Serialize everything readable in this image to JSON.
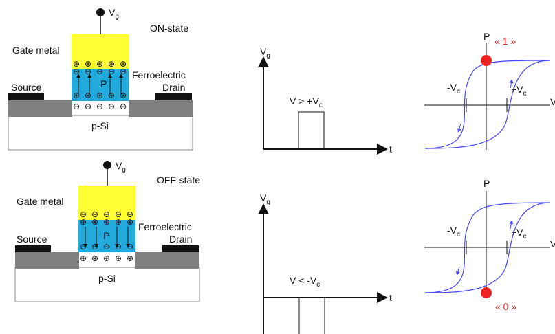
{
  "colors": {
    "gate_yellow": "#ffff33",
    "ferro_blue": "#22aadd",
    "contact_black": "#111111",
    "oxide_gray": "#808080",
    "curve_blue": "#4444ff",
    "highlight_red": "#ee2222"
  },
  "top": {
    "gate_terminal": "V",
    "gate_terminal_sub": "g",
    "state": "ON-state",
    "gate_metal": "Gate metal",
    "ferroelectric": "Ferroelectric",
    "polarization": "P",
    "source": "Source",
    "drain": "Drain",
    "substrate": "p-Si",
    "gate_charges": [
      "⊕",
      "⊕",
      "⊕",
      "⊕",
      "⊕"
    ],
    "ferro_top_charges": [
      "⊖",
      "⊖",
      "⊖",
      "⊖",
      "⊖"
    ],
    "ferro_bottom_charges": [
      "⊕",
      "⊕",
      "⊕",
      "⊕",
      "⊕"
    ],
    "channel_charges": [
      "⊖",
      "⊖",
      "⊖",
      "⊖",
      "⊖"
    ],
    "pulse_axis_y": "V",
    "pulse_axis_y_sub": "g",
    "pulse_axis_x": "t",
    "pulse_label": "V > +V",
    "pulse_label_sub": "c",
    "hyst_axis_p": "P",
    "hyst_axis_v": "V",
    "neg_coercive": "-V",
    "neg_coercive_sub": "c",
    "pos_coercive": "+V",
    "pos_coercive_sub": "c",
    "state_value": "« 1 »"
  },
  "bottom": {
    "gate_terminal": "V",
    "gate_terminal_sub": "g",
    "state": "OFF-state",
    "gate_metal": "Gate metal",
    "ferroelectric": "Ferroelectric",
    "polarization": "P",
    "source": "Source",
    "drain": "Drain",
    "substrate": "p-Si",
    "gate_charges": [
      "⊖",
      "⊖",
      "⊖",
      "⊖",
      "⊖"
    ],
    "ferro_top_charges": [
      "⊕",
      "⊕",
      "⊕",
      "⊕",
      "⊕"
    ],
    "ferro_bottom_charges": [
      "⊖",
      "⊖",
      "⊖",
      "⊖",
      "⊖"
    ],
    "channel_charges": [
      "⊕",
      "⊕",
      "⊕",
      "⊕",
      "⊕"
    ],
    "pulse_axis_y": "V",
    "pulse_axis_y_sub": "g",
    "pulse_axis_x": "t",
    "pulse_label": "V < -V",
    "pulse_label_sub": "c",
    "hyst_axis_p": "P",
    "hyst_axis_v": "V",
    "neg_coercive": "-V",
    "neg_coercive_sub": "c",
    "pos_coercive": "+V",
    "pos_coercive_sub": "c",
    "state_value": "« 0 »"
  }
}
